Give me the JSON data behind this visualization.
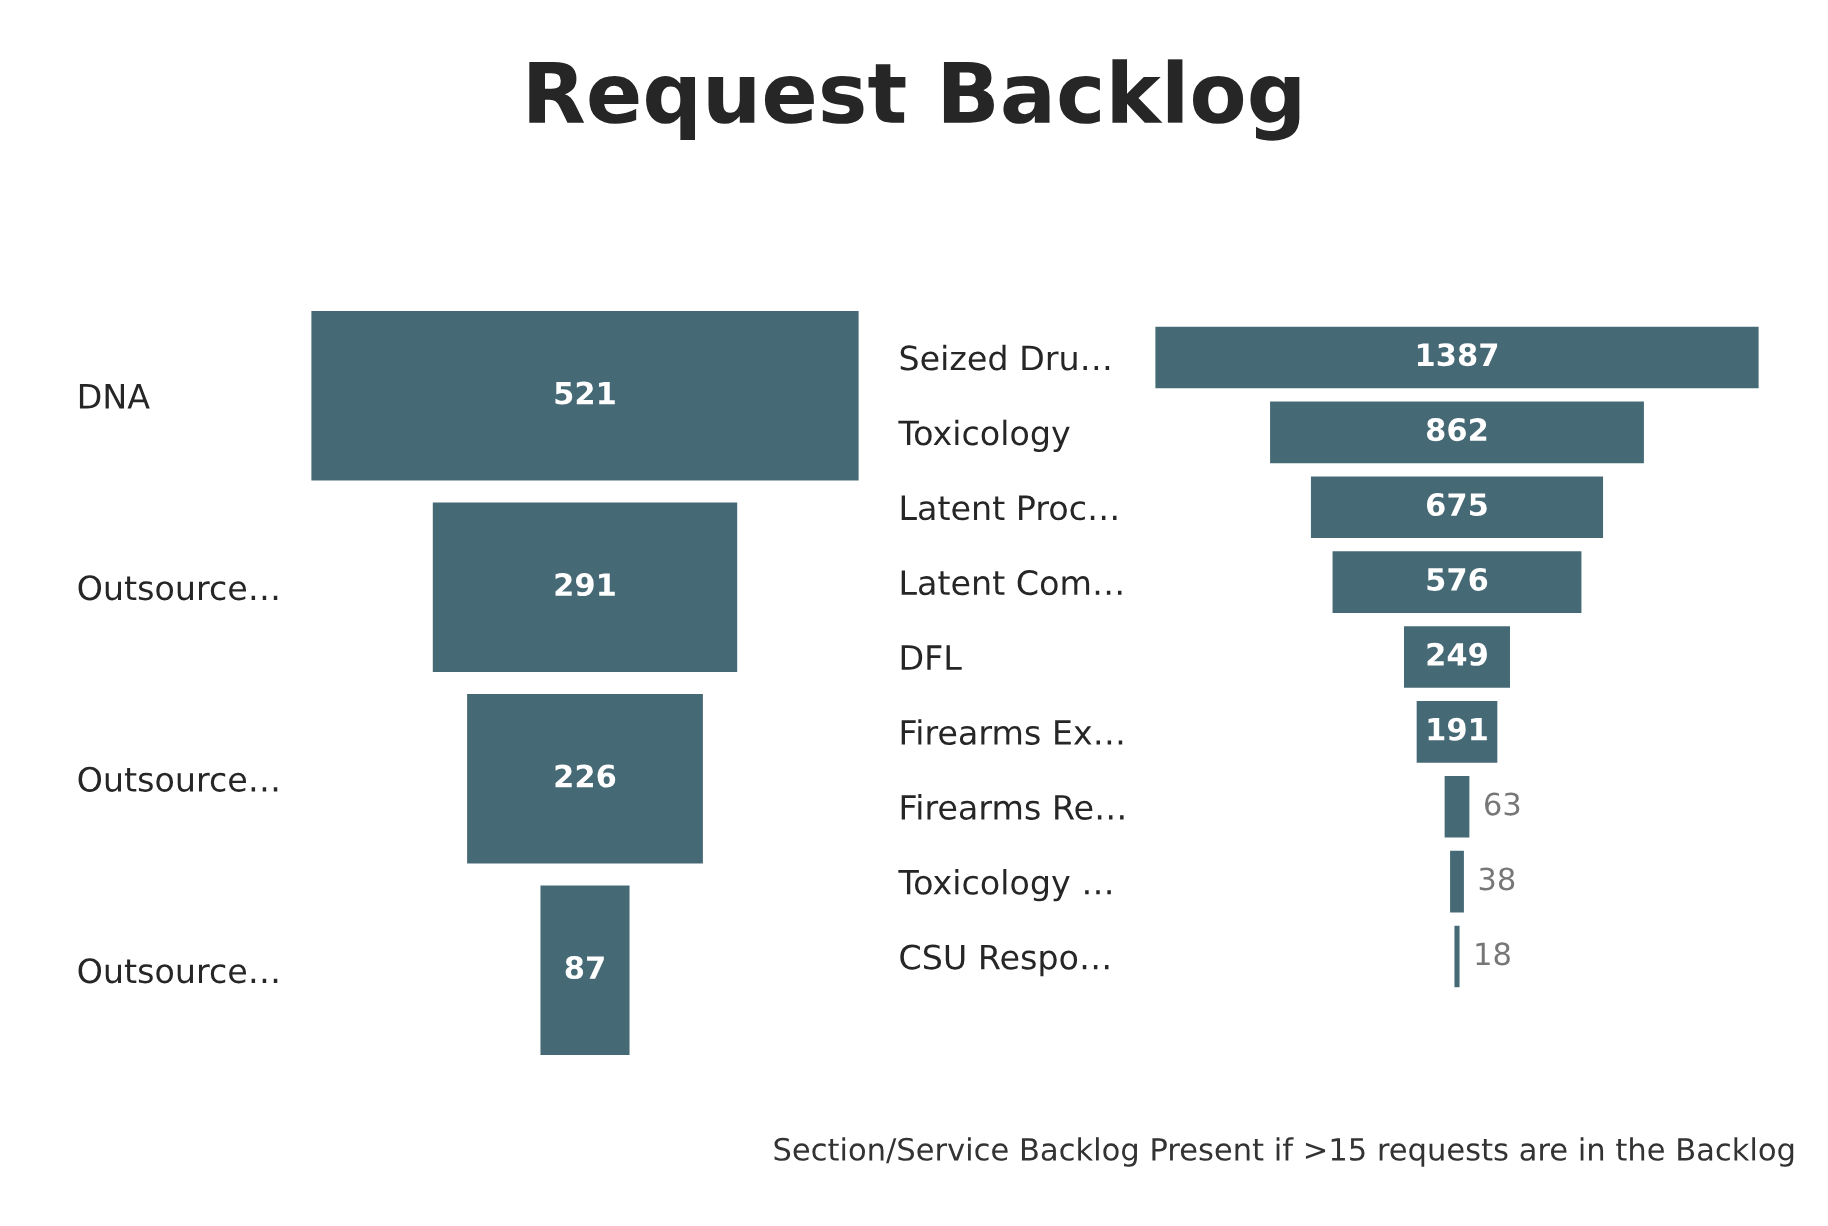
{
  "chart_data": [
    {
      "type": "other",
      "title": "Request Backlog",
      "categories": [
        "DNA",
        "Outsource…",
        "Outsource…",
        "Outsource…"
      ],
      "values": [
        521,
        291,
        226,
        87
      ],
      "color": "#466a75",
      "data_labels": true
    },
    {
      "type": "other",
      "categories": [
        "Seized Dru…",
        "Toxicology",
        "Latent Proc…",
        "Latent Com…",
        "DFL",
        "Firearms Ex…",
        "Firearms Re…",
        "Toxicology …",
        "CSU Respo…"
      ],
      "values": [
        1387,
        862,
        675,
        576,
        249,
        191,
        63,
        38,
        18
      ],
      "color": "#466a75",
      "data_labels": true,
      "annotations": [
        "Section/Service Backlog Present if >15 requests are in the Backlog"
      ]
    }
  ]
}
